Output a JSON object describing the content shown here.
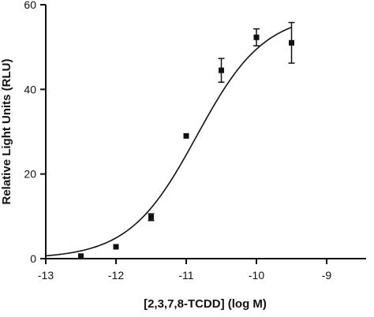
{
  "chart_data": {
    "type": "scatter",
    "xlabel": "[2,3,7,8-TCDD] (log M)",
    "ylabel": "Relative Light Units (RLU)",
    "xlim": [
      -13,
      -9
    ],
    "ylim": [
      0,
      60
    ],
    "x_ticks": [
      -13,
      -12,
      -11,
      -10,
      -9
    ],
    "x_tick_labels": [
      "-13",
      "-12",
      "-11",
      "-10",
      "-9"
    ],
    "y_ticks": [
      0,
      20,
      40,
      60
    ],
    "y_tick_labels": [
      "0",
      "20",
      "40",
      "60"
    ],
    "grid": false,
    "series": [
      {
        "marker": "square",
        "x": [
          -12.5,
          -12,
          -11.5,
          -11,
          -10.5,
          -10,
          -9.5
        ],
        "y": [
          0.6,
          2.8,
          9.8,
          29,
          44.5,
          52.3,
          51
        ],
        "err": [
          0.3,
          0.3,
          0.8,
          0.4,
          2.8,
          2.0,
          4.8
        ]
      }
    ],
    "fit_curve": {
      "model": "sigmoidal dose-response",
      "bottom": 0,
      "top": 58,
      "log_ec50": -10.85,
      "hill": 0.9
    }
  }
}
